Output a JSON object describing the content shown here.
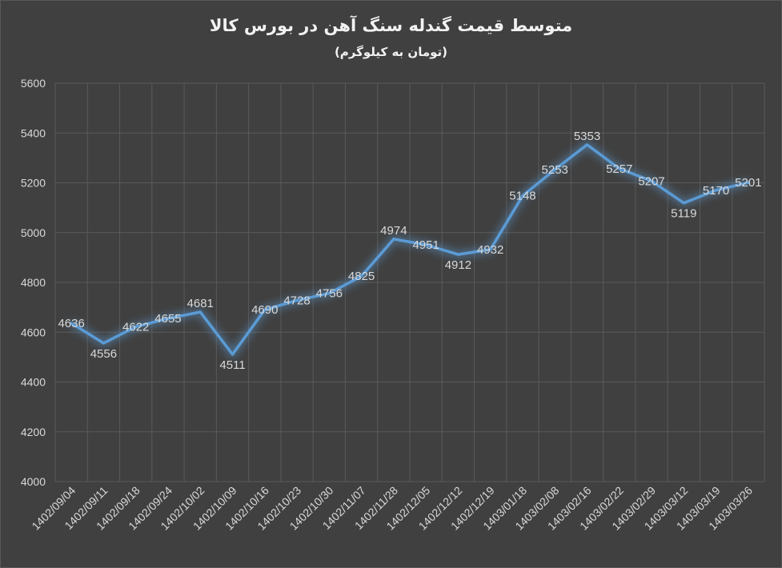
{
  "chart_data": {
    "type": "line",
    "title": "متوسط قیمت گندله سنگ آهن در بورس کالا",
    "subtitle": "(تومان به کیلوگرم)",
    "xlabel": "",
    "ylabel": "",
    "ylim": [
      4000,
      5600
    ],
    "yticks": [
      "4000",
      "4200",
      "4400",
      "4600",
      "4800",
      "5000",
      "5200",
      "5400",
      "5600"
    ],
    "grid": true,
    "line_color": "#5b9bd5",
    "categories": [
      "1402/09/04",
      "1402/09/11",
      "1402/09/18",
      "1402/09/24",
      "1402/10/02",
      "1402/10/09",
      "1402/10/16",
      "1402/10/23",
      "1402/10/30",
      "1402/11/07",
      "1402/11/28",
      "1402/12/05",
      "1402/12/12",
      "1402/12/19",
      "1403/01/18",
      "1403/02/08",
      "1403/02/16",
      "1403/02/22",
      "1403/02/29",
      "1403/03/12",
      "1403/03/19",
      "1403/03/26"
    ],
    "values": [
      4636,
      4556,
      4622,
      4655,
      4681,
      4511,
      4690,
      4728,
      4756,
      4825,
      4974,
      4951,
      4912,
      4932,
      5148,
      5253,
      5353,
      5257,
      5207,
      5119,
      5170,
      5201
    ]
  }
}
